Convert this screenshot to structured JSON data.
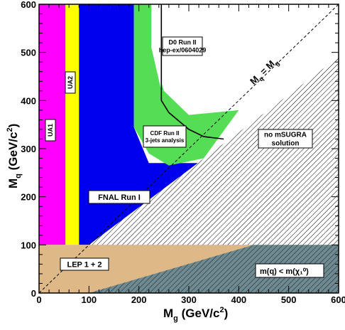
{
  "chart_data": {
    "type": "area",
    "xlim": [
      0,
      600
    ],
    "ylim": [
      0,
      600
    ],
    "x_ticks": [
      0,
      100,
      200,
      300,
      400,
      500,
      600
    ],
    "y_ticks": [
      0,
      100,
      200,
      300,
      400,
      500,
      600
    ],
    "x_tick_labels": [
      "0",
      "100",
      "200",
      "300",
      "400",
      "500",
      "600"
    ],
    "y_tick_labels": [
      "0",
      "100",
      "200",
      "300",
      "400",
      "500",
      "600"
    ],
    "xlabel": {
      "main": "M",
      "sub": "g",
      "rest": " (GeV/c",
      "sup": "2",
      "end": ")"
    },
    "ylabel": {
      "main": "M",
      "sub": "q",
      "rest": " (GeV/c",
      "sup": "2",
      "end": ")"
    },
    "diagonal_label": {
      "m1": "M",
      "s1": "q",
      "eq": " = ",
      "m2": "M",
      "s2": "g"
    },
    "colors": {
      "UA1": "#ff00ff",
      "UA2": "#ffff00",
      "FNAL": "#0000ee",
      "CDF": "#55dd55",
      "LEP": "#deb887",
      "D0_line": "#000000",
      "hatch": "#000000"
    },
    "regions": [
      {
        "name": "UA1",
        "label": "UA1",
        "polygon": [
          [
            0,
            100
          ],
          [
            53,
            100
          ],
          [
            53,
            600
          ],
          [
            0,
            600
          ]
        ]
      },
      {
        "name": "UA2",
        "label": "UA2",
        "polygon": [
          [
            53,
            100
          ],
          [
            80,
            100
          ],
          [
            80,
            600
          ],
          [
            53,
            600
          ]
        ]
      },
      {
        "name": "FNAL",
        "label": "FNAL Run I",
        "polygon": [
          [
            80,
            100
          ],
          [
            430,
            100
          ],
          [
            570,
            150
          ],
          [
            370,
            270
          ],
          [
            220,
            270
          ],
          [
            190,
            345
          ],
          [
            190,
            600
          ],
          [
            80,
            600
          ]
        ]
      },
      {
        "name": "CDF",
        "label_lines": [
          "CDF Run II",
          "3-jets analysis"
        ],
        "polygon": [
          [
            190,
            600
          ],
          [
            225,
            600
          ],
          [
            225,
            510
          ],
          [
            250,
            420
          ],
          [
            300,
            370
          ],
          [
            400,
            380
          ],
          [
            330,
            280
          ],
          [
            260,
            265
          ],
          [
            220,
            290
          ],
          [
            190,
            345
          ]
        ]
      },
      {
        "name": "LEP",
        "label": "LEP 1 + 2",
        "polygon": [
          [
            0,
            0
          ],
          [
            600,
            0
          ],
          [
            600,
            100
          ],
          [
            0,
            100
          ]
        ]
      }
    ],
    "hatched_regions": [
      {
        "name": "no-mSUGRA",
        "label_lines": [
          "no mSUGRA",
          "solution"
        ],
        "polygon": [
          [
            100,
            100
          ],
          [
            600,
            100
          ],
          [
            600,
            490
          ]
        ]
      },
      {
        "name": "neutralino-lsp",
        "label": "m(q) < m(χ₁⁰)",
        "polygon": [
          [
            100,
            0
          ],
          [
            600,
            0
          ],
          [
            600,
            100
          ],
          [
            430,
            100
          ]
        ]
      }
    ],
    "white_patch": [
      [
        225,
        600
      ],
      [
        245,
        600
      ],
      [
        245,
        420
      ],
      [
        225,
        510
      ]
    ],
    "d0_curve": {
      "label_lines": [
        "D0 Run II",
        "hep-ex/0604029"
      ],
      "points": [
        [
          245,
          600
        ],
        [
          245,
          400
        ],
        [
          260,
          375
        ],
        [
          300,
          340
        ],
        [
          330,
          325
        ],
        [
          370,
          320
        ]
      ]
    },
    "diagonal": {
      "from": [
        0,
        0
      ],
      "to": [
        600,
        600
      ]
    }
  }
}
